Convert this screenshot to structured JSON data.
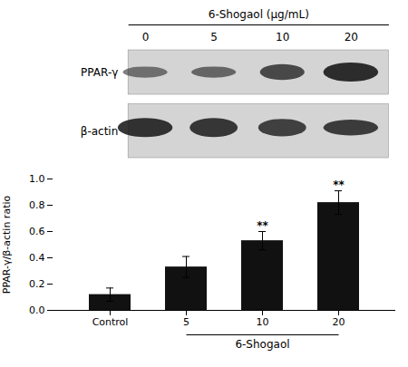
{
  "chart_data": [
    {
      "type": "blot",
      "title": "6-Shogaol (μg/mL)",
      "categories": [
        "0",
        "5",
        "10",
        "20"
      ],
      "series": [
        {
          "name": "PPAR-γ"
        },
        {
          "name": "β-actin"
        }
      ]
    },
    {
      "type": "bar",
      "categories": [
        "Control",
        "5",
        "10",
        "20"
      ],
      "values": [
        0.12,
        0.33,
        0.53,
        0.82
      ],
      "errors": [
        0.05,
        0.08,
        0.07,
        0.09
      ],
      "color": "#111111",
      "ylabel": "PPAR-γ/β-actin ratio",
      "xlabel": "6-Shogaol",
      "ylim": [
        0,
        1.0
      ],
      "yticks": [
        {
          "value": 0,
          "label": "0.0"
        },
        0.2,
        0.4,
        0.6,
        0.8,
        {
          "value": 1.0,
          "label": "1.0"
        }
      ],
      "annotations": [
        {
          "category": "10",
          "text": "**"
        },
        {
          "category": "20",
          "text": "**"
        }
      ],
      "grid": false
    }
  ]
}
